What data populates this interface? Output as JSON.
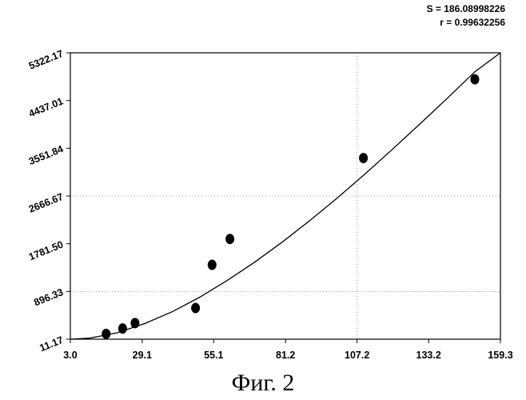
{
  "stats": {
    "s_line": "S = 186.08998226",
    "r_line": "r = 0.99632256"
  },
  "caption": "Фиг. 2",
  "chart_data": {
    "type": "scatter",
    "title": "",
    "xlabel": "",
    "ylabel": "",
    "xlim": [
      3.0,
      159.3
    ],
    "ylim": [
      11.17,
      5322.17
    ],
    "x_ticks": [
      3.0,
      29.1,
      55.1,
      81.2,
      107.2,
      133.2,
      159.3
    ],
    "x_tick_labels": [
      "3.0",
      "29.1",
      "55.1",
      "81.2",
      "107.2",
      "133.2",
      "159.3"
    ],
    "y_ticks": [
      11.17,
      896.33,
      1781.5,
      2666.67,
      3551.84,
      4437.01,
      5322.17
    ],
    "y_tick_labels": [
      "11.17",
      "896.33",
      "1781.50",
      "2666.67",
      "3551.84",
      "4437.01",
      "5322.17"
    ],
    "grid": "dotted",
    "points": {
      "x": [
        16.0,
        22.0,
        26.5,
        48.5,
        54.5,
        61.0,
        109.5,
        150.0
      ],
      "y": [
        110,
        210,
        310,
        590,
        1390,
        1870,
        3370,
        4830
      ]
    },
    "fit_curve": {
      "x": [
        3.0,
        10.0,
        20.0,
        30.0,
        40.0,
        50.0,
        60.0,
        70.0,
        80.0,
        90.0,
        100.0,
        110.0,
        120.0,
        130.0,
        140.0,
        150.0,
        159.3
      ],
      "y": [
        11.17,
        30,
        130,
        300,
        520,
        790,
        1100,
        1440,
        1810,
        2210,
        2630,
        3070,
        3530,
        4000,
        4480,
        4970,
        5322.17
      ]
    }
  }
}
